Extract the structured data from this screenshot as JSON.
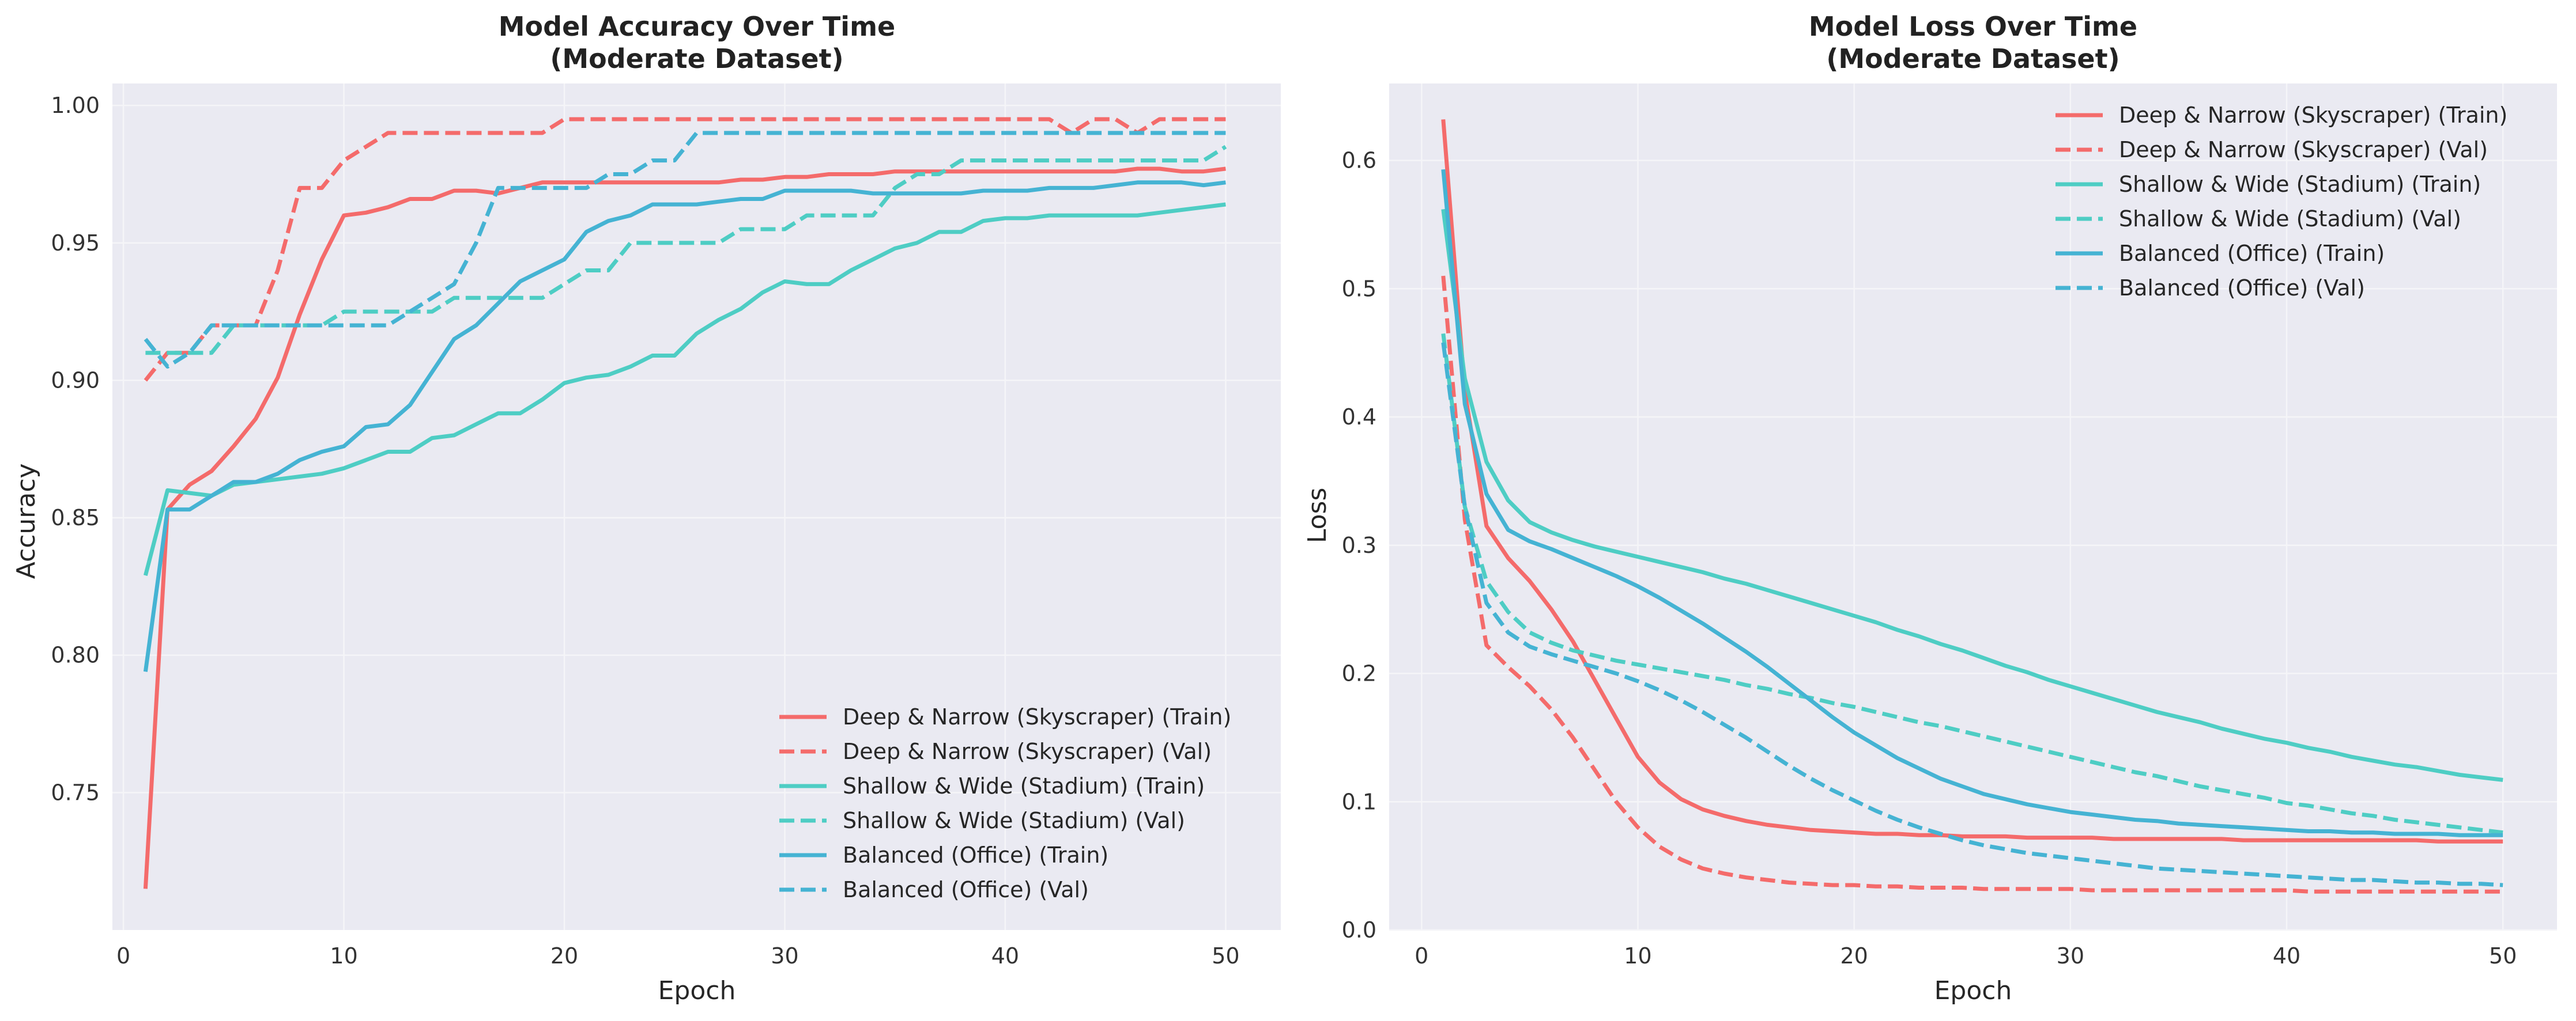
{
  "colors": {
    "deep": "#f46b6b",
    "shallow": "#4ecdc4",
    "balanced": "#45b3d3",
    "plot_bg": "#eaeaf2",
    "grid": "#f5f5f8"
  },
  "chart_data": [
    {
      "type": "line",
      "title": "Model Accuracy Over Time",
      "subtitle": "(Moderate Dataset)",
      "xlabel": "Epoch",
      "ylabel": "Accuracy",
      "xlim": [
        -0.5,
        52.5
      ],
      "ylim": [
        0.7,
        1.008
      ],
      "xticks": [
        "0",
        "10",
        "20",
        "30",
        "40",
        "50"
      ],
      "yticks": [
        "0.75",
        "0.80",
        "0.85",
        "0.90",
        "0.95",
        "1.00"
      ],
      "grid": true,
      "legend_position": "lower-right",
      "x": [
        1,
        2,
        3,
        4,
        5,
        6,
        7,
        8,
        9,
        10,
        11,
        12,
        13,
        14,
        15,
        16,
        17,
        18,
        19,
        20,
        21,
        22,
        23,
        24,
        25,
        26,
        27,
        28,
        29,
        30,
        31,
        32,
        33,
        34,
        35,
        36,
        37,
        38,
        39,
        40,
        41,
        42,
        43,
        44,
        45,
        46,
        47,
        48,
        49,
        50
      ],
      "series": [
        {
          "name": "Deep & Narrow (Skyscraper) (Train)",
          "color_key": "deep",
          "dash": false,
          "values": [
            0.715,
            0.853,
            0.862,
            0.867,
            0.876,
            0.886,
            0.901,
            0.924,
            0.944,
            0.96,
            0.961,
            0.963,
            0.966,
            0.966,
            0.969,
            0.969,
            0.968,
            0.97,
            0.972,
            0.972,
            0.972,
            0.972,
            0.972,
            0.972,
            0.972,
            0.972,
            0.972,
            0.973,
            0.973,
            0.974,
            0.974,
            0.975,
            0.975,
            0.975,
            0.976,
            0.976,
            0.976,
            0.976,
            0.976,
            0.976,
            0.976,
            0.976,
            0.976,
            0.976,
            0.976,
            0.977,
            0.977,
            0.976,
            0.976,
            0.977
          ]
        },
        {
          "name": "Deep & Narrow (Skyscraper) (Val)",
          "color_key": "deep",
          "dash": true,
          "values": [
            0.9,
            0.91,
            0.91,
            0.92,
            0.92,
            0.92,
            0.94,
            0.97,
            0.97,
            0.98,
            0.985,
            0.99,
            0.99,
            0.99,
            0.99,
            0.99,
            0.99,
            0.99,
            0.99,
            0.995,
            0.995,
            0.995,
            0.995,
            0.995,
            0.995,
            0.995,
            0.995,
            0.995,
            0.995,
            0.995,
            0.995,
            0.995,
            0.995,
            0.995,
            0.995,
            0.995,
            0.995,
            0.995,
            0.995,
            0.995,
            0.995,
            0.995,
            0.99,
            0.995,
            0.995,
            0.99,
            0.995,
            0.995,
            0.995,
            0.995
          ]
        },
        {
          "name": "Shallow & Wide (Stadium) (Train)",
          "color_key": "shallow",
          "dash": false,
          "values": [
            0.829,
            0.86,
            0.859,
            0.858,
            0.862,
            0.863,
            0.864,
            0.865,
            0.866,
            0.868,
            0.871,
            0.874,
            0.874,
            0.879,
            0.88,
            0.884,
            0.888,
            0.888,
            0.893,
            0.899,
            0.901,
            0.902,
            0.905,
            0.909,
            0.909,
            0.917,
            0.922,
            0.926,
            0.932,
            0.936,
            0.935,
            0.935,
            0.94,
            0.944,
            0.948,
            0.95,
            0.954,
            0.954,
            0.958,
            0.959,
            0.959,
            0.96,
            0.96,
            0.96,
            0.96,
            0.96,
            0.961,
            0.962,
            0.963,
            0.964
          ]
        },
        {
          "name": "Shallow & Wide (Stadium) (Val)",
          "color_key": "shallow",
          "dash": true,
          "values": [
            0.91,
            0.91,
            0.91,
            0.91,
            0.92,
            0.92,
            0.92,
            0.92,
            0.92,
            0.925,
            0.925,
            0.925,
            0.925,
            0.925,
            0.93,
            0.93,
            0.93,
            0.93,
            0.93,
            0.935,
            0.94,
            0.94,
            0.95,
            0.95,
            0.95,
            0.95,
            0.95,
            0.955,
            0.955,
            0.955,
            0.96,
            0.96,
            0.96,
            0.96,
            0.97,
            0.975,
            0.975,
            0.98,
            0.98,
            0.98,
            0.98,
            0.98,
            0.98,
            0.98,
            0.98,
            0.98,
            0.98,
            0.98,
            0.98,
            0.985
          ]
        },
        {
          "name": "Balanced (Office) (Train)",
          "color_key": "balanced",
          "dash": false,
          "values": [
            0.794,
            0.853,
            0.853,
            0.858,
            0.863,
            0.863,
            0.866,
            0.871,
            0.874,
            0.876,
            0.883,
            0.884,
            0.891,
            0.903,
            0.915,
            0.92,
            0.928,
            0.936,
            0.94,
            0.944,
            0.954,
            0.958,
            0.96,
            0.964,
            0.964,
            0.964,
            0.965,
            0.966,
            0.966,
            0.969,
            0.969,
            0.969,
            0.969,
            0.968,
            0.968,
            0.968,
            0.968,
            0.968,
            0.969,
            0.969,
            0.969,
            0.97,
            0.97,
            0.97,
            0.971,
            0.972,
            0.972,
            0.972,
            0.971,
            0.972
          ]
        },
        {
          "name": "Balanced (Office) (Val)",
          "color_key": "balanced",
          "dash": true,
          "values": [
            0.915,
            0.905,
            0.91,
            0.92,
            0.92,
            0.92,
            0.92,
            0.92,
            0.92,
            0.92,
            0.92,
            0.92,
            0.925,
            0.93,
            0.935,
            0.95,
            0.97,
            0.97,
            0.97,
            0.97,
            0.97,
            0.975,
            0.975,
            0.98,
            0.98,
            0.99,
            0.99,
            0.99,
            0.99,
            0.99,
            0.99,
            0.99,
            0.99,
            0.99,
            0.99,
            0.99,
            0.99,
            0.99,
            0.99,
            0.99,
            0.99,
            0.99,
            0.99,
            0.99,
            0.99,
            0.99,
            0.99,
            0.99,
            0.99,
            0.99
          ]
        }
      ]
    },
    {
      "type": "line",
      "title": "Model Loss Over Time",
      "subtitle": "(Moderate Dataset)",
      "xlabel": "Epoch",
      "ylabel": "Loss",
      "xlim": [
        -1.5,
        52.5
      ],
      "ylim": [
        0.0,
        0.66
      ],
      "xticks": [
        "0",
        "10",
        "20",
        "30",
        "40",
        "50"
      ],
      "yticks": [
        "0.0",
        "0.1",
        "0.2",
        "0.3",
        "0.4",
        "0.5",
        "0.6"
      ],
      "grid": true,
      "legend_position": "upper-right",
      "x": [
        1,
        2,
        3,
        4,
        5,
        6,
        7,
        8,
        9,
        10,
        11,
        12,
        13,
        14,
        15,
        16,
        17,
        18,
        19,
        20,
        21,
        22,
        23,
        24,
        25,
        26,
        27,
        28,
        29,
        30,
        31,
        32,
        33,
        34,
        35,
        36,
        37,
        38,
        39,
        40,
        41,
        42,
        43,
        44,
        45,
        46,
        47,
        48,
        49,
        50
      ],
      "series": [
        {
          "name": "Deep & Narrow (Skyscraper) (Train)",
          "color_key": "deep",
          "dash": false,
          "values": [
            0.632,
            0.42,
            0.315,
            0.29,
            0.272,
            0.25,
            0.225,
            0.195,
            0.165,
            0.135,
            0.115,
            0.102,
            0.094,
            0.089,
            0.085,
            0.082,
            0.08,
            0.078,
            0.077,
            0.076,
            0.075,
            0.075,
            0.074,
            0.074,
            0.073,
            0.073,
            0.073,
            0.072,
            0.072,
            0.072,
            0.072,
            0.071,
            0.071,
            0.071,
            0.071,
            0.071,
            0.071,
            0.07,
            0.07,
            0.07,
            0.07,
            0.07,
            0.07,
            0.07,
            0.07,
            0.07,
            0.069,
            0.069,
            0.069,
            0.069
          ]
        },
        {
          "name": "Deep & Narrow (Skyscraper) (Val)",
          "color_key": "deep",
          "dash": true,
          "values": [
            0.51,
            0.32,
            0.222,
            0.205,
            0.19,
            0.172,
            0.15,
            0.125,
            0.1,
            0.08,
            0.065,
            0.055,
            0.048,
            0.044,
            0.041,
            0.039,
            0.037,
            0.036,
            0.035,
            0.035,
            0.034,
            0.034,
            0.033,
            0.033,
            0.033,
            0.032,
            0.032,
            0.032,
            0.032,
            0.032,
            0.031,
            0.031,
            0.031,
            0.031,
            0.031,
            0.031,
            0.031,
            0.031,
            0.031,
            0.031,
            0.03,
            0.03,
            0.03,
            0.03,
            0.03,
            0.03,
            0.03,
            0.03,
            0.03,
            0.03
          ]
        },
        {
          "name": "Shallow & Wide (Stadium) (Train)",
          "color_key": "shallow",
          "dash": false,
          "values": [
            0.562,
            0.43,
            0.365,
            0.335,
            0.318,
            0.31,
            0.304,
            0.299,
            0.295,
            0.291,
            0.287,
            0.283,
            0.279,
            0.274,
            0.27,
            0.265,
            0.26,
            0.255,
            0.25,
            0.245,
            0.24,
            0.234,
            0.229,
            0.223,
            0.218,
            0.212,
            0.206,
            0.201,
            0.195,
            0.19,
            0.185,
            0.18,
            0.175,
            0.17,
            0.166,
            0.162,
            0.157,
            0.153,
            0.149,
            0.146,
            0.142,
            0.139,
            0.135,
            0.132,
            0.129,
            0.127,
            0.124,
            0.121,
            0.119,
            0.117
          ]
        },
        {
          "name": "Shallow & Wide (Stadium) (Val)",
          "color_key": "shallow",
          "dash": true,
          "values": [
            0.465,
            0.33,
            0.272,
            0.248,
            0.232,
            0.224,
            0.218,
            0.214,
            0.21,
            0.207,
            0.204,
            0.201,
            0.198,
            0.195,
            0.191,
            0.188,
            0.184,
            0.181,
            0.177,
            0.174,
            0.17,
            0.166,
            0.162,
            0.159,
            0.155,
            0.151,
            0.147,
            0.143,
            0.139,
            0.135,
            0.131,
            0.127,
            0.123,
            0.12,
            0.116,
            0.112,
            0.109,
            0.106,
            0.103,
            0.099,
            0.097,
            0.094,
            0.091,
            0.089,
            0.086,
            0.084,
            0.082,
            0.08,
            0.078,
            0.076
          ]
        },
        {
          "name": "Balanced (Office) (Train)",
          "color_key": "balanced",
          "dash": false,
          "values": [
            0.593,
            0.41,
            0.34,
            0.312,
            0.303,
            0.297,
            0.29,
            0.283,
            0.276,
            0.268,
            0.259,
            0.249,
            0.239,
            0.228,
            0.217,
            0.205,
            0.192,
            0.179,
            0.166,
            0.154,
            0.144,
            0.134,
            0.126,
            0.118,
            0.112,
            0.106,
            0.102,
            0.098,
            0.095,
            0.092,
            0.09,
            0.088,
            0.086,
            0.085,
            0.083,
            0.082,
            0.081,
            0.08,
            0.079,
            0.078,
            0.077,
            0.077,
            0.076,
            0.076,
            0.075,
            0.075,
            0.075,
            0.074,
            0.074,
            0.074
          ]
        },
        {
          "name": "Balanced (Office) (Val)",
          "color_key": "balanced",
          "dash": true,
          "values": [
            0.458,
            0.33,
            0.255,
            0.232,
            0.221,
            0.215,
            0.21,
            0.205,
            0.2,
            0.194,
            0.187,
            0.179,
            0.17,
            0.16,
            0.15,
            0.139,
            0.128,
            0.118,
            0.109,
            0.101,
            0.093,
            0.086,
            0.08,
            0.075,
            0.07,
            0.066,
            0.063,
            0.06,
            0.058,
            0.056,
            0.054,
            0.052,
            0.05,
            0.048,
            0.047,
            0.046,
            0.045,
            0.044,
            0.043,
            0.042,
            0.041,
            0.04,
            0.039,
            0.039,
            0.038,
            0.037,
            0.037,
            0.036,
            0.036,
            0.035
          ]
        }
      ]
    }
  ]
}
